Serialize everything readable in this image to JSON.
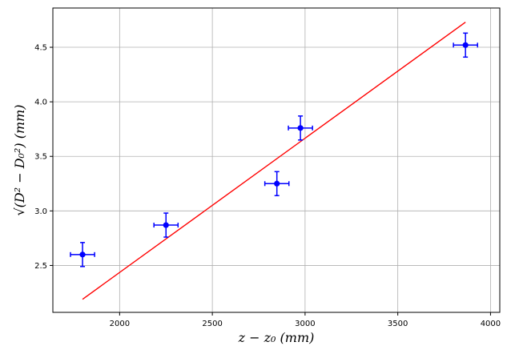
{
  "chart_data": {
    "type": "scatter",
    "title": "",
    "xlabel": "z − z₀ (mm)",
    "ylabel": "√(D² − D₀²) (mm)",
    "xlim": [
      1640,
      4050
    ],
    "ylim": [
      2.07,
      4.86
    ],
    "xticks": [
      2000,
      2500,
      3000,
      3500,
      4000
    ],
    "yticks": [
      2.5,
      3.0,
      3.5,
      4.0,
      4.5
    ],
    "grid": true,
    "series": [
      {
        "kind": "errorbar",
        "color": "#0000ff",
        "points": [
          {
            "x": 1800,
            "y": 2.6,
            "xerr": 65,
            "yerr": 0.11
          },
          {
            "x": 2250,
            "y": 2.87,
            "xerr": 65,
            "yerr": 0.11
          },
          {
            "x": 2848,
            "y": 3.25,
            "xerr": 65,
            "yerr": 0.11
          },
          {
            "x": 2975,
            "y": 3.76,
            "xerr": 65,
            "yerr": 0.11
          },
          {
            "x": 3865,
            "y": 4.52,
            "xerr": 65,
            "yerr": 0.11
          }
        ]
      },
      {
        "kind": "fit-line",
        "color": "#ff0000",
        "x": [
          1800,
          3865
        ],
        "y": [
          2.19,
          4.73
        ]
      }
    ]
  }
}
